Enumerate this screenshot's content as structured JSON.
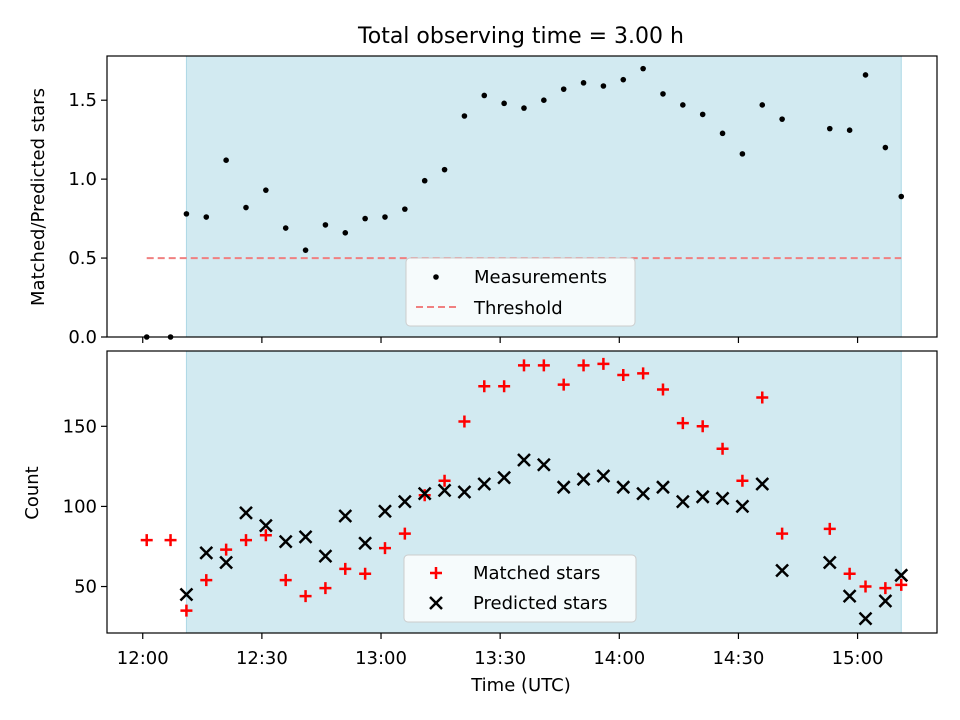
{
  "figure": {
    "title": "Total observing time = 3.00 h",
    "xlabel": "Time (UTC)",
    "x_ticks": [
      "12:00",
      "12:30",
      "13:00",
      "13:30",
      "14:00",
      "14:30",
      "15:00"
    ],
    "x_tick_minutes": [
      720,
      750,
      780,
      810,
      840,
      870,
      900
    ],
    "observing_window_minutes": [
      731,
      911
    ],
    "xlim_minutes": [
      711,
      920
    ],
    "shade_color": "#add8e6"
  },
  "chart_data": [
    {
      "type": "scatter",
      "ylabel": "Matched/Predicted stars",
      "ylim": [
        0,
        1.78
      ],
      "y_ticks": [
        "0.0",
        "0.5",
        "1.0",
        "1.5"
      ],
      "y_tick_values": [
        0,
        0.5,
        1.0,
        1.5
      ],
      "legend_position": "lower center",
      "series": [
        {
          "name": "Measurements",
          "marker": "dot",
          "color": "#000000",
          "x": [
            721,
            727,
            731,
            736,
            741,
            746,
            751,
            756,
            761,
            766,
            771,
            776,
            781,
            786,
            791,
            796,
            801,
            806,
            811,
            816,
            821,
            826,
            831,
            836,
            841,
            846,
            851,
            856,
            861,
            866,
            871,
            876,
            881,
            893,
            898,
            902,
            907,
            911
          ],
          "y": [
            0.0,
            0.0,
            0.78,
            0.76,
            1.12,
            0.82,
            0.93,
            0.69,
            0.55,
            0.71,
            0.66,
            0.75,
            0.76,
            0.81,
            0.99,
            1.06,
            1.4,
            1.53,
            1.48,
            1.45,
            1.5,
            1.57,
            1.61,
            1.59,
            1.63,
            1.7,
            1.54,
            1.47,
            1.41,
            1.29,
            1.16,
            1.47,
            1.38,
            1.32,
            1.31,
            1.66,
            1.2,
            0.89
          ]
        },
        {
          "name": "Threshold",
          "marker": "dashed-line",
          "color": "#f08080",
          "x": [
            721,
            911
          ],
          "y": [
            0.5,
            0.5
          ]
        }
      ]
    },
    {
      "type": "scatter",
      "ylabel": "Count",
      "ylim": [
        21,
        197
      ],
      "y_ticks": [
        "50",
        "100",
        "150"
      ],
      "y_tick_values": [
        50,
        100,
        150
      ],
      "legend_position": "lower center",
      "series": [
        {
          "name": "Matched stars",
          "marker": "plus",
          "color": "#ff0000",
          "x": [
            721,
            727,
            731,
            736,
            741,
            746,
            751,
            756,
            761,
            766,
            771,
            776,
            781,
            786,
            791,
            796,
            801,
            806,
            811,
            816,
            821,
            826,
            831,
            836,
            841,
            846,
            851,
            856,
            861,
            866,
            871,
            876,
            881,
            893,
            898,
            902,
            907,
            911
          ],
          "y": [
            79,
            79,
            35,
            54,
            73,
            79,
            82,
            54,
            44,
            49,
            61,
            58,
            74,
            83,
            107,
            116,
            153,
            175,
            175,
            188,
            188,
            176,
            188,
            189,
            182,
            183,
            173,
            152,
            150,
            136,
            116,
            168,
            83,
            86,
            58,
            50,
            49,
            51
          ]
        },
        {
          "name": "Predicted stars",
          "marker": "x",
          "color": "#000000",
          "x": [
            731,
            736,
            741,
            746,
            751,
            756,
            761,
            766,
            771,
            776,
            781,
            786,
            791,
            796,
            801,
            806,
            811,
            816,
            821,
            826,
            831,
            836,
            841,
            846,
            851,
            856,
            861,
            866,
            871,
            876,
            881,
            893,
            898,
            902,
            907,
            911
          ],
          "y": [
            45,
            71,
            65,
            96,
            88,
            78,
            81,
            69,
            94,
            77,
            97,
            103,
            108,
            110,
            109,
            114,
            118,
            129,
            126,
            112,
            117,
            119,
            112,
            108,
            112,
            103,
            106,
            105,
            100,
            114,
            60,
            65,
            44,
            30,
            41,
            57
          ]
        }
      ]
    }
  ]
}
